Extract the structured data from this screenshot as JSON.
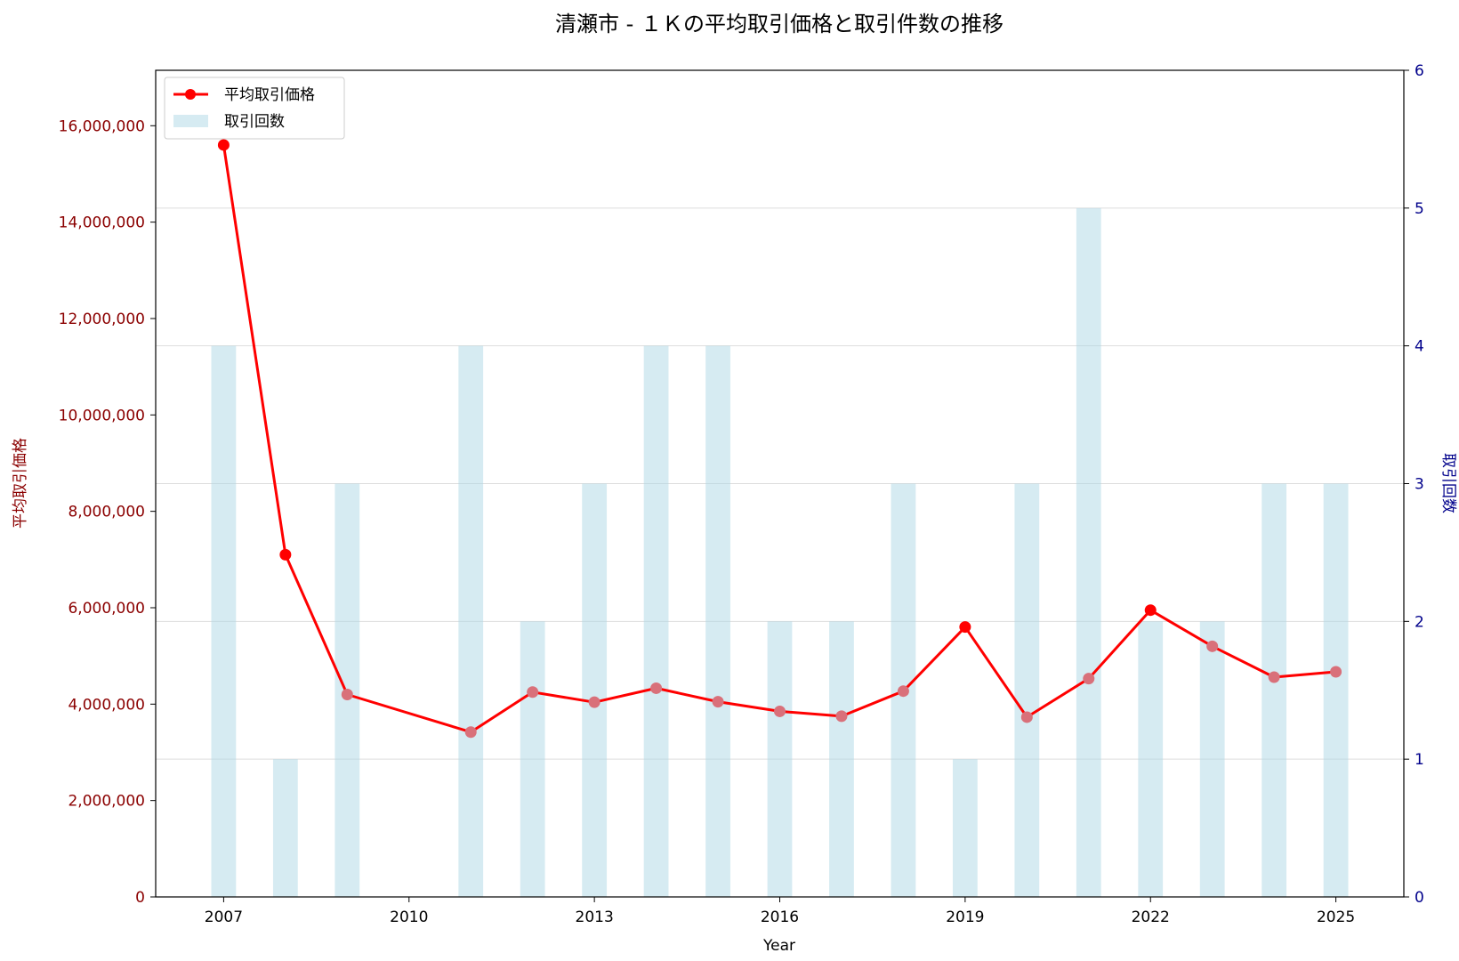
{
  "chart_data": {
    "type": "bar+line",
    "title": "清瀬市 - １Ｋの平均取引価格と取引件数の推移",
    "xlabel": "Year",
    "ylabel_left": "平均取引価格",
    "ylabel_right": "取引回数",
    "x_ticks": [
      "2007",
      "2010",
      "2013",
      "2016",
      "2019",
      "2022",
      "2025"
    ],
    "xlim": [
      2005.9,
      2026.1
    ],
    "ylim_left": [
      0,
      17150000
    ],
    "ylim_right": [
      0,
      6
    ],
    "left_ticks": [
      {
        "value": 0,
        "label": "0"
      },
      {
        "value": 2000000,
        "label": "2,000,000"
      },
      {
        "value": 4000000,
        "label": "4,000,000"
      },
      {
        "value": 6000000,
        "label": "6,000,000"
      },
      {
        "value": 8000000,
        "label": "8,000,000"
      },
      {
        "value": 10000000,
        "label": "10,000,000"
      },
      {
        "value": 12000000,
        "label": "12,000,000"
      },
      {
        "value": 14000000,
        "label": "14,000,000"
      },
      {
        "value": 16000000,
        "label": "16,000,000"
      }
    ],
    "right_ticks": [
      {
        "value": 0,
        "label": "0"
      },
      {
        "value": 1,
        "label": "1"
      },
      {
        "value": 2,
        "label": "2"
      },
      {
        "value": 3,
        "label": "3"
      },
      {
        "value": 4,
        "label": "4"
      },
      {
        "value": 5,
        "label": "5"
      },
      {
        "value": 6,
        "label": "6"
      }
    ],
    "grid": "horizontal (right axis)",
    "legend_position": "top-left",
    "colors": {
      "line": "#ff0000",
      "marker": "#ff0000",
      "marker_overlap": "#d9707a",
      "bars": "#add8e6",
      "left_axis": "#8b0000",
      "right_axis": "#00008b",
      "grid": "#dddddd"
    },
    "series": [
      {
        "name": "平均取引価格",
        "type": "line",
        "axis": "left",
        "x": [
          2007,
          2008,
          2009,
          2011,
          2012,
          2013,
          2014,
          2015,
          2016,
          2017,
          2018,
          2019,
          2020,
          2021,
          2022,
          2023,
          2024,
          2025
        ],
        "values": [
          15600000,
          7100000,
          4200000,
          3420000,
          4250000,
          4040000,
          4330000,
          4050000,
          3850000,
          3750000,
          4270000,
          5600000,
          3730000,
          4530000,
          5950000,
          5200000,
          4560000,
          4670000
        ]
      },
      {
        "name": "取引回数",
        "type": "bar",
        "axis": "right",
        "x": [
          2007,
          2008,
          2009,
          2011,
          2012,
          2013,
          2014,
          2015,
          2016,
          2017,
          2018,
          2019,
          2020,
          2021,
          2022,
          2023,
          2024,
          2025
        ],
        "values": [
          4,
          1,
          3,
          4,
          2,
          3,
          4,
          4,
          2,
          2,
          3,
          1,
          3,
          5,
          2,
          2,
          3,
          3
        ]
      }
    ]
  }
}
